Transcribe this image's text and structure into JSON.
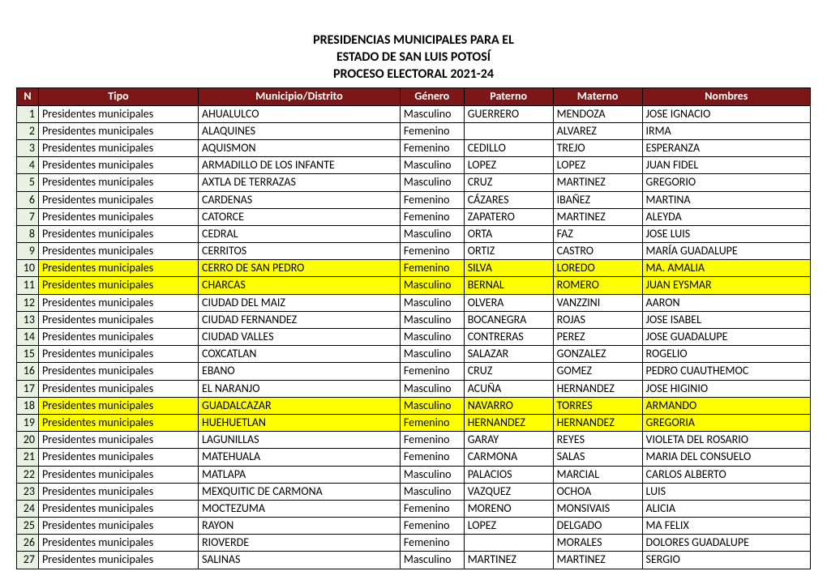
{
  "title_lines": [
    "PRESIDENCIAS MUNICIPALES PARA EL",
    "ESTADO DE SAN LUIS POTOSÍ",
    "PROCESO ELECTORAL 2021-24"
  ],
  "columns": [
    "N",
    "Tipo",
    "Municipio/Distrito",
    "Género",
    "Paterno",
    "Materno",
    "Nombres"
  ],
  "header_bg": "#7d1717",
  "header_color": "#ffffff",
  "n_col_bg": "#e9f1e3",
  "highlight_bg": "#ffff00",
  "rows": [
    {
      "n": 1,
      "tipo": "Presidentes municipales",
      "mun": "AHUALULCO",
      "gen": "Masculino",
      "pat": "GUERRERO",
      "mat": "MENDOZA",
      "nom": "JOSE IGNACIO",
      "hl": false
    },
    {
      "n": 2,
      "tipo": "Presidentes municipales",
      "mun": "ALAQUINES",
      "gen": "Femenino",
      "pat": "",
      "mat": "ALVAREZ",
      "nom": "IRMA",
      "hl": false
    },
    {
      "n": 3,
      "tipo": "Presidentes municipales",
      "mun": "AQUISMON",
      "gen": "Femenino",
      "pat": "CEDILLO",
      "mat": "TREJO",
      "nom": "ESPERANZA",
      "hl": false
    },
    {
      "n": 4,
      "tipo": "Presidentes municipales",
      "mun": "ARMADILLO DE LOS INFANTE",
      "gen": "Masculino",
      "pat": "LOPEZ",
      "mat": "LOPEZ",
      "nom": "JUAN FIDEL",
      "hl": false
    },
    {
      "n": 5,
      "tipo": "Presidentes municipales",
      "mun": "AXTLA DE TERRAZAS",
      "gen": "Masculino",
      "pat": "CRUZ",
      "mat": "MARTINEZ",
      "nom": "GREGORIO",
      "hl": false
    },
    {
      "n": 6,
      "tipo": "Presidentes municipales",
      "mun": "CARDENAS",
      "gen": "Femenino",
      "pat": "CÁZARES",
      "mat": "IBAÑEZ",
      "nom": "MARTINA",
      "hl": false
    },
    {
      "n": 7,
      "tipo": "Presidentes municipales",
      "mun": "CATORCE",
      "gen": "Femenino",
      "pat": "ZAPATERO",
      "mat": "MARTINEZ",
      "nom": "ALEYDA",
      "hl": false
    },
    {
      "n": 8,
      "tipo": "Presidentes municipales",
      "mun": "CEDRAL",
      "gen": "Masculino",
      "pat": "ORTA",
      "mat": "FAZ",
      "nom": "JOSE LUIS",
      "hl": false
    },
    {
      "n": 9,
      "tipo": "Presidentes municipales",
      "mun": "CERRITOS",
      "gen": "Femenino",
      "pat": "ORTIZ",
      "mat": "CASTRO",
      "nom": "MARÍA GUADALUPE",
      "hl": false
    },
    {
      "n": 10,
      "tipo": "Presidentes municipales",
      "mun": "CERRO DE SAN PEDRO",
      "gen": "Femenino",
      "pat": "SILVA",
      "mat": "LOREDO",
      "nom": "MA. AMALIA",
      "hl": true
    },
    {
      "n": 11,
      "tipo": "Presidentes municipales",
      "mun": "CHARCAS",
      "gen": "Masculino",
      "pat": "BERNAL",
      "mat": "ROMERO",
      "nom": "JUAN EYSMAR",
      "hl": true
    },
    {
      "n": 12,
      "tipo": "Presidentes municipales",
      "mun": "CIUDAD DEL MAIZ",
      "gen": "Masculino",
      "pat": "OLVERA",
      "mat": "VANZZINI",
      "nom": "AARON",
      "hl": false
    },
    {
      "n": 13,
      "tipo": "Presidentes municipales",
      "mun": "CIUDAD FERNANDEZ",
      "gen": "Masculino",
      "pat": "BOCANEGRA",
      "mat": "ROJAS",
      "nom": "JOSE ISABEL",
      "hl": false
    },
    {
      "n": 14,
      "tipo": "Presidentes municipales",
      "mun": "CIUDAD VALLES",
      "gen": "Masculino",
      "pat": "CONTRERAS",
      "mat": "PEREZ",
      "nom": "JOSE GUADALUPE",
      "hl": false
    },
    {
      "n": 15,
      "tipo": "Presidentes municipales",
      "mun": "COXCATLAN",
      "gen": "Masculino",
      "pat": "SALAZAR",
      "mat": "GONZALEZ",
      "nom": "ROGELIO",
      "hl": false
    },
    {
      "n": 16,
      "tipo": "Presidentes municipales",
      "mun": "EBANO",
      "gen": "Femenino",
      "pat": "CRUZ",
      "mat": "GOMEZ",
      "nom": "PEDRO CUAUTHEMOC",
      "hl": false
    },
    {
      "n": 17,
      "tipo": "Presidentes municipales",
      "mun": "EL NARANJO",
      "gen": "Masculino",
      "pat": "ACUÑA",
      "mat": "HERNANDEZ",
      "nom": "JOSE HIGINIO",
      "hl": false
    },
    {
      "n": 18,
      "tipo": "Presidentes municipales",
      "mun": "GUADALCAZAR",
      "gen": "Masculino",
      "pat": "NAVARRO",
      "mat": "TORRES",
      "nom": "ARMANDO",
      "hl": true
    },
    {
      "n": 19,
      "tipo": "Presidentes municipales",
      "mun": "HUEHUETLAN",
      "gen": "Femenino",
      "pat": "HERNANDEZ",
      "mat": "HERNANDEZ",
      "nom": "GREGORIA",
      "hl": true
    },
    {
      "n": 20,
      "tipo": "Presidentes municipales",
      "mun": "LAGUNILLAS",
      "gen": "Femenino",
      "pat": "GARAY",
      "mat": "REYES",
      "nom": "VIOLETA DEL ROSARIO",
      "hl": false
    },
    {
      "n": 21,
      "tipo": "Presidentes municipales",
      "mun": "MATEHUALA",
      "gen": "Femenino",
      "pat": "CARMONA",
      "mat": "SALAS",
      "nom": "MARIA DEL CONSUELO",
      "hl": false
    },
    {
      "n": 22,
      "tipo": "Presidentes municipales",
      "mun": "MATLAPA",
      "gen": "Masculino",
      "pat": "PALACIOS",
      "mat": "MARCIAL",
      "nom": "CARLOS ALBERTO",
      "hl": false
    },
    {
      "n": 23,
      "tipo": "Presidentes municipales",
      "mun": "MEXQUITIC DE CARMONA",
      "gen": "Masculino",
      "pat": "VAZQUEZ",
      "mat": "OCHOA",
      "nom": "LUIS",
      "hl": false
    },
    {
      "n": 24,
      "tipo": "Presidentes municipales",
      "mun": "MOCTEZUMA",
      "gen": "Femenino",
      "pat": "MORENO",
      "mat": "MONSIVAIS",
      "nom": "ALICIA",
      "hl": false
    },
    {
      "n": 25,
      "tipo": "Presidentes municipales",
      "mun": "RAYON",
      "gen": "Femenino",
      "pat": "LOPEZ",
      "mat": "DELGADO",
      "nom": "MA FELIX",
      "hl": false
    },
    {
      "n": 26,
      "tipo": "Presidentes municipales",
      "mun": "RIOVERDE",
      "gen": "Femenino",
      "pat": "",
      "mat": "MORALES",
      "nom": "DOLORES GUADALUPE",
      "hl": false
    },
    {
      "n": 27,
      "tipo": "Presidentes municipales",
      "mun": "SALINAS",
      "gen": "Masculino",
      "pat": "MARTINEZ",
      "mat": "MARTINEZ",
      "nom": "SERGIO",
      "hl": false
    }
  ]
}
